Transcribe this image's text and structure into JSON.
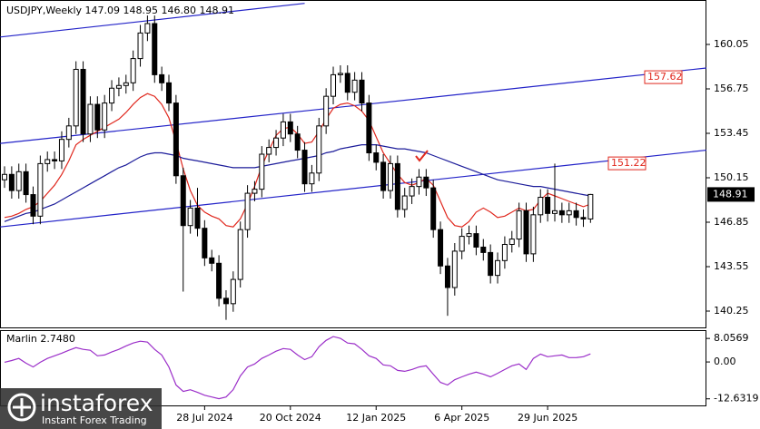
{
  "chart_data": {
    "type": "candlestick",
    "title": "USDJPY,Weekly 147.09 148.95 146.80 148.91",
    "categories": [
      null,
      null,
      null,
      null,
      null,
      null,
      null,
      null,
      null,
      null,
      null,
      null,
      null,
      null,
      null,
      null,
      null,
      null,
      null,
      null,
      null,
      null,
      null,
      null,
      null,
      null,
      null,
      null,
      "28 Jul 2024",
      null,
      null,
      null,
      null,
      null,
      null,
      null,
      null,
      null,
      null,
      null,
      "20 Oct 2024",
      null,
      null,
      null,
      null,
      null,
      null,
      null,
      null,
      null,
      null,
      null,
      "12 Jan 2025",
      null,
      null,
      null,
      null,
      null,
      null,
      null,
      null,
      null,
      null,
      null,
      "6 Apr 2025",
      null,
      null,
      null,
      null,
      null,
      null,
      null,
      null,
      null,
      null,
      null,
      "29 Jun 2025",
      null,
      null,
      null,
      null,
      null,
      null
    ],
    "open": [
      150.0,
      150.4,
      149.2,
      150.6,
      148.9,
      147.3,
      151.2,
      151.5,
      151.4,
      153.0,
      154.0,
      158.2,
      153.4,
      155.6,
      153.7,
      155.7,
      156.8,
      157.0,
      157.2,
      159.0,
      160.9,
      161.6,
      157.8,
      157.2,
      155.7,
      150.3,
      146.6,
      147.9,
      146.4,
      144.2,
      143.8,
      141.2,
      140.8,
      142.6,
      146.3,
      149.0,
      149.3,
      151.9,
      152.4,
      153.1,
      154.3,
      153.4,
      152.2,
      149.7,
      150.5,
      154.0,
      156.2,
      157.8,
      157.9,
      156.5,
      157.4,
      155.7,
      152.0,
      151.3,
      149.2,
      151.2,
      147.8,
      148.8,
      149.5,
      150.2,
      149.4,
      146.3,
      143.6,
      142.0,
      144.7,
      145.8,
      146.0,
      145.0,
      144.6,
      142.9,
      144.0,
      145.2,
      145.6,
      147.7,
      144.5,
      147.4,
      148.7,
      147.5,
      147.7,
      147.4,
      147.7,
      147.2,
      147.09
    ],
    "high": [
      151.0,
      151.0,
      151.2,
      151.2,
      149.5,
      151.8,
      152.1,
      152.1,
      153.6,
      154.6,
      158.8,
      158.8,
      156.2,
      156.2,
      156.3,
      157.4,
      157.6,
      157.8,
      159.6,
      161.5,
      162.2,
      162.2,
      158.4,
      157.8,
      156.3,
      150.9,
      148.5,
      149.4,
      147.0,
      144.8,
      144.4,
      141.8,
      143.2,
      146.9,
      149.6,
      149.9,
      152.5,
      153.0,
      153.7,
      154.9,
      154.9,
      154.0,
      152.8,
      151.1,
      154.6,
      156.8,
      158.4,
      158.5,
      158.5,
      158.0,
      158.0,
      156.3,
      152.6,
      151.9,
      151.8,
      151.8,
      149.4,
      150.1,
      150.8,
      150.8,
      150.0,
      146.9,
      144.2,
      145.3,
      146.4,
      146.6,
      146.6,
      145.6,
      145.2,
      144.6,
      145.8,
      146.2,
      148.3,
      148.3,
      148.0,
      149.3,
      149.3,
      151.2,
      148.3,
      148.3,
      148.3,
      147.8,
      148.95
    ],
    "low": [
      149.4,
      148.6,
      148.6,
      148.3,
      146.7,
      146.7,
      150.6,
      150.8,
      150.8,
      152.4,
      153.4,
      152.8,
      152.8,
      153.1,
      153.1,
      155.1,
      156.2,
      156.4,
      156.6,
      158.4,
      160.3,
      157.2,
      156.6,
      155.1,
      149.7,
      141.7,
      146.0,
      145.8,
      143.6,
      143.2,
      140.6,
      139.6,
      140.2,
      142.0,
      145.7,
      148.4,
      148.7,
      151.3,
      151.8,
      152.5,
      152.8,
      151.6,
      149.1,
      149.1,
      149.9,
      153.4,
      155.6,
      157.2,
      155.9,
      155.9,
      155.1,
      151.4,
      150.7,
      148.6,
      148.6,
      147.2,
      147.2,
      148.2,
      148.9,
      148.8,
      145.7,
      143.0,
      139.9,
      141.4,
      144.1,
      145.2,
      144.4,
      144.0,
      142.3,
      142.3,
      143.4,
      144.6,
      145.0,
      143.9,
      143.9,
      146.8,
      146.9,
      146.9,
      146.8,
      146.8,
      146.6,
      146.5,
      146.8
    ],
    "close": [
      150.4,
      149.2,
      150.6,
      148.9,
      147.3,
      151.2,
      151.5,
      151.4,
      153.0,
      154.0,
      158.2,
      153.4,
      155.6,
      153.7,
      155.7,
      156.8,
      157.0,
      157.2,
      159.0,
      160.9,
      161.6,
      157.8,
      157.2,
      155.7,
      150.3,
      146.6,
      147.9,
      146.4,
      144.2,
      143.8,
      141.2,
      140.8,
      142.6,
      146.3,
      149.0,
      149.3,
      151.9,
      152.4,
      153.1,
      154.3,
      153.4,
      152.2,
      149.7,
      150.5,
      154.0,
      156.2,
      157.8,
      157.9,
      156.5,
      157.4,
      155.7,
      152.0,
      151.3,
      149.2,
      151.2,
      147.8,
      148.8,
      149.5,
      150.2,
      149.4,
      146.3,
      143.6,
      142.0,
      144.7,
      145.8,
      146.0,
      145.0,
      144.6,
      142.9,
      144.0,
      145.2,
      145.6,
      147.7,
      144.5,
      147.4,
      148.7,
      147.5,
      147.7,
      147.4,
      147.7,
      147.2,
      147.09,
      148.91
    ],
    "up_color": "#ffffff",
    "down_color": "#000000",
    "ylim": [
      138.97,
      163.35
    ],
    "yticks": [
      160.05,
      156.75,
      153.45,
      150.15,
      146.85,
      143.55,
      140.25
    ],
    "lines": [
      {
        "color": "#e0281e",
        "values": [
          147.2,
          147.3,
          147.5,
          147.8,
          148.0,
          148.4,
          149.0,
          149.6,
          150.4,
          151.4,
          152.6,
          153.0,
          153.3,
          153.6,
          153.9,
          154.2,
          154.5,
          155.0,
          155.6,
          156.1,
          156.4,
          156.2,
          155.6,
          154.6,
          152.8,
          150.8,
          149.2,
          148.1,
          147.6,
          147.3,
          147.1,
          146.6,
          146.5,
          147.1,
          148.2,
          149.5,
          151.0,
          152.2,
          153.3,
          153.8,
          153.9,
          153.4,
          152.7,
          152.8,
          153.6,
          154.5,
          155.3,
          155.6,
          155.7,
          155.5,
          155.1,
          154.4,
          153.2,
          152.0,
          151.2,
          150.4,
          149.8,
          149.6,
          149.8,
          150.1,
          149.6,
          148.4,
          147.2,
          146.6,
          146.5,
          146.9,
          147.6,
          147.9,
          147.6,
          147.2,
          147.3,
          147.6,
          147.9,
          147.7,
          147.8,
          148.5,
          149.0,
          148.8,
          148.6,
          148.4,
          148.2,
          148.0,
          148.2
        ]
      },
      {
        "color": "#1c1c9a",
        "values": [
          146.9,
          147.1,
          147.3,
          147.5,
          147.6,
          147.8,
          148.0,
          148.2,
          148.5,
          148.8,
          149.1,
          149.4,
          149.7,
          150.0,
          150.3,
          150.6,
          150.9,
          151.1,
          151.4,
          151.7,
          151.9,
          152.0,
          152.0,
          151.9,
          151.8,
          151.6,
          151.5,
          151.4,
          151.3,
          151.2,
          151.1,
          151.0,
          150.9,
          150.9,
          150.9,
          150.9,
          151.0,
          151.1,
          151.2,
          151.3,
          151.4,
          151.5,
          151.6,
          151.7,
          151.8,
          152.0,
          152.1,
          152.3,
          152.4,
          152.5,
          152.6,
          152.6,
          152.6,
          152.5,
          152.4,
          152.3,
          152.3,
          152.2,
          152.1,
          152.0,
          151.8,
          151.6,
          151.4,
          151.2,
          151.0,
          150.8,
          150.6,
          150.4,
          150.2,
          150.0,
          149.9,
          149.8,
          149.7,
          149.6,
          149.5,
          149.5,
          149.4,
          149.3,
          149.2,
          149.1,
          149.0,
          148.9,
          148.8
        ]
      }
    ],
    "trendlines": [
      {
        "color": "#2323c8",
        "x": [
          -0.6,
          42
        ],
        "y": [
          160.6,
          163.1
        ]
      },
      {
        "color": "#2323c8",
        "x": [
          -0.6,
          98.2
        ],
        "y": [
          152.7,
          158.3
        ],
        "label": 157.62
      },
      {
        "color": "#2323c8",
        "x": [
          -0.6,
          98.2
        ],
        "y": [
          146.5,
          152.2
        ],
        "label": 151.22
      }
    ],
    "indicator": {
      "type": "line",
      "label": "Marlin 2.7480",
      "color": "#9b2fc9",
      "values": [
        -0.1,
        0.5,
        1.2,
        -0.4,
        -1.7,
        -0.1,
        1.2,
        2.1,
        3.0,
        4.0,
        4.9,
        4.3,
        4.0,
        2.1,
        2.4,
        3.4,
        4.3,
        5.5,
        6.5,
        7.1,
        6.8,
        4.3,
        2.4,
        -1.7,
        -7.9,
        -10.1,
        -9.5,
        -10.4,
        -11.4,
        -12.0,
        -12.6,
        -12.0,
        -9.5,
        -4.8,
        -1.7,
        -0.7,
        1.2,
        2.4,
        3.7,
        4.6,
        4.3,
        2.4,
        0.8,
        1.8,
        5.2,
        7.4,
        8.7,
        8.1,
        6.5,
        6.2,
        4.3,
        2.1,
        1.2,
        -1.0,
        -1.3,
        -2.9,
        -3.2,
        -2.6,
        -1.7,
        -1.3,
        -4.2,
        -7.0,
        -7.9,
        -6.1,
        -5.1,
        -4.2,
        -3.5,
        -4.2,
        -5.1,
        -3.9,
        -2.6,
        -1.3,
        -0.7,
        -2.6,
        1.2,
        2.7,
        1.8,
        2.1,
        2.4,
        1.5,
        1.5,
        1.8,
        2.748
      ],
      "ylim": [
        -15.2,
        10.9
      ],
      "yticks": [
        8.0569,
        {
          "value": 0,
          "label": "0.00"
        },
        -12.6319
      ]
    }
  },
  "watermark": {
    "brand": "instaforex",
    "tagline": "Instant Forex Trading"
  }
}
